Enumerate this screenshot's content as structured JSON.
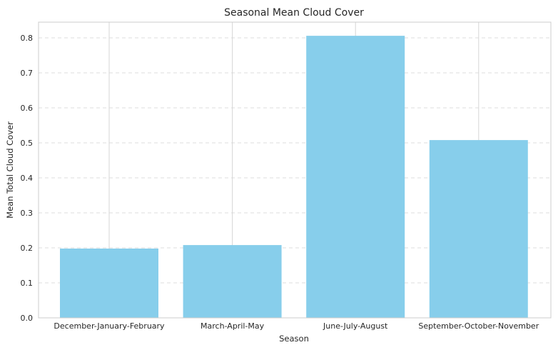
{
  "chart_data": {
    "type": "bar",
    "title": "Seasonal Mean Cloud Cover",
    "xlabel": "Season",
    "ylabel": "Mean Total Cloud Cover",
    "categories": [
      "December-January-February",
      "March-April-May",
      "June-July-August",
      "September-October-November"
    ],
    "values": [
      0.198,
      0.208,
      0.806,
      0.508
    ],
    "ylim": [
      0,
      0.845
    ],
    "yticks": [
      0.0,
      0.1,
      0.2,
      0.3,
      0.4,
      0.5,
      0.6,
      0.7,
      0.8
    ],
    "ytick_labels": [
      "0.0",
      "0.1",
      "0.2",
      "0.3",
      "0.4",
      "0.5",
      "0.6",
      "0.7",
      "0.8"
    ],
    "bar_color": "#87ceeb",
    "grid": true,
    "legend": "none"
  }
}
